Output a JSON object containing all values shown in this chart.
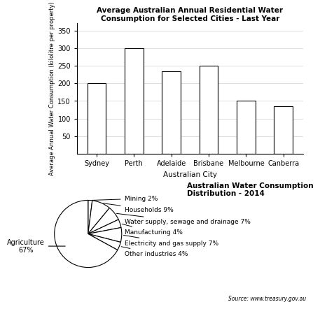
{
  "bar_cities": [
    "Sydney",
    "Perth",
    "Adelaide",
    "Brisbane",
    "Melbourne",
    "Canberra"
  ],
  "bar_values": [
    200,
    300,
    235,
    250,
    150,
    135
  ],
  "bar_color": "#ffffff",
  "bar_edgecolor": "#000000",
  "bar_title": "Average Australian Annual Residential Water\nConsumption for Selected Cities - Last Year",
  "bar_xlabel": "Australian City",
  "bar_ylabel": "Average Annual Water Consumption (kilolitre per property)",
  "bar_ylim": [
    0,
    370
  ],
  "bar_yticks": [
    50,
    100,
    150,
    200,
    250,
    300,
    350
  ],
  "pie_values": [
    2,
    9,
    7,
    4,
    7,
    4,
    67
  ],
  "pie_labels_right": [
    "Mining 2%",
    "Households 9%",
    "Water supply, sewage and drainage 7%",
    "Manufacturing 4%",
    "Electricity and gas supply 7%",
    "Other industries 4%"
  ],
  "pie_label_left": "Agriculture\n67%",
  "pie_title": "Australian Water Consumption\nDistribution - 2014",
  "pie_source": "Source: www.treasury.gov.au"
}
